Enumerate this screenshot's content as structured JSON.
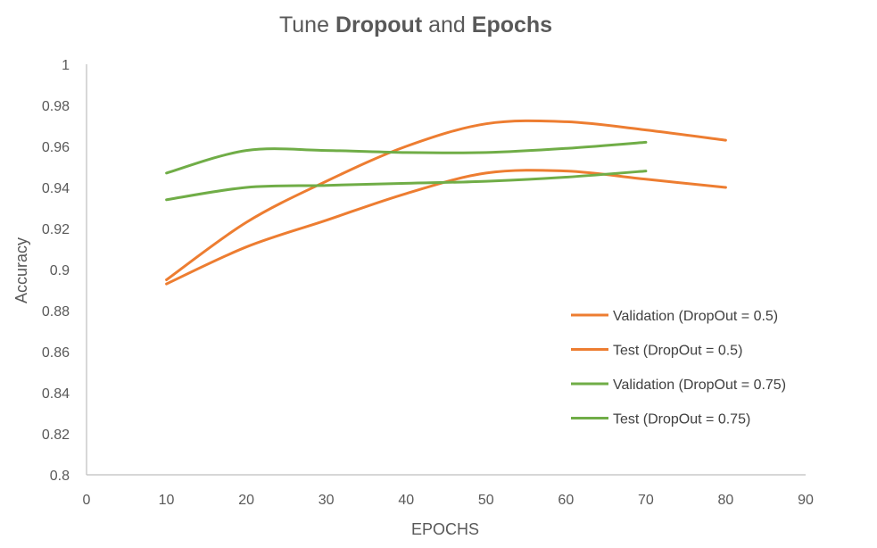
{
  "chart_data": {
    "type": "line",
    "title": {
      "parts": [
        {
          "text": "Tune ",
          "bold": false
        },
        {
          "text": "Dropout",
          "bold": true
        },
        {
          "text": " and ",
          "bold": false
        },
        {
          "text": "Epochs",
          "bold": true
        }
      ]
    },
    "xlabel": "EPOCHS",
    "ylabel": "Accuracy",
    "xlim": [
      0,
      90
    ],
    "ylim": [
      0.8,
      1
    ],
    "x_ticks": [
      0,
      10,
      20,
      30,
      40,
      50,
      60,
      70,
      80,
      90
    ],
    "x_tick_labels": [
      "0",
      "10",
      "20",
      "30",
      "40",
      "50",
      "60",
      "70",
      "80",
      "90"
    ],
    "y_ticks": [
      0.8,
      0.82,
      0.84,
      0.86,
      0.88,
      0.9,
      0.92,
      0.94,
      0.96,
      0.98,
      1
    ],
    "y_tick_labels": [
      "0.8",
      "0.82",
      "0.84",
      "0.86",
      "0.88",
      "0.9",
      "0.92",
      "0.94",
      "0.96",
      "0.98",
      "1"
    ],
    "grid": false,
    "legend_position": "right",
    "series": [
      {
        "name": "Validation (DropOut = 0.5)",
        "color": "#ed7d31",
        "x": [
          10,
          20,
          30,
          40,
          50,
          60,
          70,
          80
        ],
        "y": [
          0.895,
          0.923,
          0.943,
          0.96,
          0.971,
          0.972,
          0.968,
          0.963
        ]
      },
      {
        "name": "Test (DropOut = 0.5)",
        "color": "#ed7d31",
        "x": [
          10,
          20,
          30,
          40,
          50,
          60,
          70,
          80
        ],
        "y": [
          0.893,
          0.911,
          0.924,
          0.937,
          0.947,
          0.948,
          0.944,
          0.94
        ]
      },
      {
        "name": "Validation (DropOut = 0.75)",
        "color": "#70ad47",
        "x": [
          10,
          20,
          30,
          40,
          50,
          60,
          70
        ],
        "y": [
          0.947,
          0.958,
          0.958,
          0.957,
          0.957,
          0.959,
          0.962
        ]
      },
      {
        "name": "Test (DropOut = 0.75)",
        "color": "#70ad47",
        "x": [
          10,
          20,
          30,
          40,
          50,
          60,
          70
        ],
        "y": [
          0.934,
          0.94,
          0.941,
          0.942,
          0.943,
          0.945,
          0.948
        ]
      }
    ]
  }
}
